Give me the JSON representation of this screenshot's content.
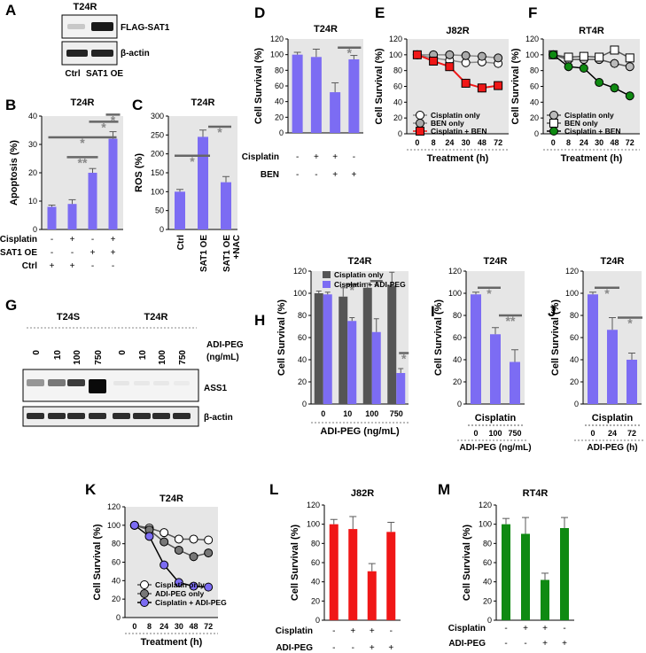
{
  "chart_data": [
    {
      "id": "A",
      "type": "blot",
      "title": "T24R",
      "bands": [
        "FLAG-SAT1",
        "β-actin"
      ],
      "lanes": [
        "Ctrl",
        "SAT1 OE"
      ]
    },
    {
      "id": "B",
      "type": "bar",
      "title": "T24R",
      "ylabel": "Apoptosis (%)",
      "ylim": [
        0,
        40
      ],
      "yticks": [
        0,
        10,
        20,
        30,
        40
      ],
      "values": [
        8,
        9,
        20,
        32
      ],
      "errors": [
        0.6,
        1.5,
        1.5,
        2.5
      ],
      "rows": [
        {
          "label": "Cisplatin",
          "symbols": [
            "-",
            "+",
            "-",
            "+"
          ]
        },
        {
          "label": "SAT1 OE",
          "symbols": [
            "-",
            "-",
            "+",
            "+"
          ]
        },
        {
          "label": "Ctrl",
          "symbols": [
            "+",
            "+",
            "-",
            "-"
          ]
        }
      ],
      "significance": [
        "*",
        "**",
        "*",
        "*"
      ]
    },
    {
      "id": "C",
      "type": "bar",
      "title": "T24R",
      "ylabel": "ROS (%)",
      "ylim": [
        0,
        300
      ],
      "yticks": [
        0,
        50,
        100,
        150,
        200,
        250,
        300
      ],
      "categories": [
        "Ctrl",
        "SAT1 OE",
        "SAT1 OE +NAC"
      ],
      "values": [
        100,
        245,
        125
      ],
      "errors": [
        6,
        18,
        15
      ],
      "significance": [
        "*",
        "*"
      ]
    },
    {
      "id": "D",
      "type": "bar",
      "title": "T24R",
      "ylabel": "Cell Survival (%)",
      "ylim": [
        0,
        120
      ],
      "yticks": [
        0,
        20,
        40,
        60,
        80,
        100,
        120
      ],
      "values": [
        100,
        97,
        52,
        94
      ],
      "errors": [
        3,
        10,
        12,
        5
      ],
      "rows": [
        {
          "label": "Cisplatin",
          "symbols": [
            "-",
            "+",
            "+",
            "-"
          ]
        },
        {
          "label": "BEN",
          "symbols": [
            "-",
            "-",
            "+",
            "+"
          ]
        }
      ],
      "significance": [
        "*"
      ]
    },
    {
      "id": "E",
      "type": "line",
      "title": "J82R",
      "ylabel": "Cell Survival (%)",
      "xlabel": "Treatment (h)",
      "x": [
        0,
        8,
        24,
        30,
        48,
        72
      ],
      "ylim": [
        0,
        120
      ],
      "yticks": [
        0,
        20,
        40,
        60,
        80,
        100,
        120
      ],
      "series": [
        {
          "name": "Cisplatin only",
          "values": [
            100,
            96,
            93,
            90,
            91,
            89
          ]
        },
        {
          "name": "BEN only",
          "values": [
            100,
            100,
            100,
            99,
            98,
            96
          ]
        },
        {
          "name": "Cisplatin + BEN",
          "values": [
            100,
            92,
            85,
            64,
            58,
            61
          ]
        }
      ]
    },
    {
      "id": "F",
      "type": "line",
      "title": "RT4R",
      "ylabel": "Cell Survival (%)",
      "xlabel": "Treatment (h)",
      "x": [
        0,
        8,
        24,
        30,
        48,
        72
      ],
      "ylim": [
        0,
        120
      ],
      "yticks": [
        0,
        20,
        40,
        60,
        80,
        100,
        120
      ],
      "series": [
        {
          "name": "Cisplatin only",
          "values": [
            100,
            94,
            94,
            94,
            89,
            85
          ]
        },
        {
          "name": "BEN only",
          "values": [
            100,
            97,
            98,
            97,
            106,
            96
          ]
        },
        {
          "name": "Cisplatin + BEN",
          "values": [
            100,
            85,
            83,
            65,
            58,
            48
          ]
        }
      ]
    },
    {
      "id": "G",
      "type": "blot",
      "groups": [
        "T24S",
        "T24R"
      ],
      "doses": [
        "0",
        "10",
        "100",
        "750",
        "0",
        "10",
        "100",
        "750"
      ],
      "dose_label": "ADI-PEG (ng/mL)",
      "bands": [
        "ASS1",
        "β-actin"
      ]
    },
    {
      "id": "H",
      "type": "bar",
      "title": "T24R",
      "ylabel": "Cell Survival (%)",
      "xlabel": "ADI-PEG (ng/mL)",
      "categories": [
        "0",
        "10",
        "100",
        "750"
      ],
      "ylim": [
        0,
        120
      ],
      "yticks": [
        0,
        20,
        40,
        60,
        80,
        100,
        120
      ],
      "series": [
        {
          "name": "Cisplatin only",
          "values": [
            100,
            97,
            105,
            107
          ],
          "errors": [
            2,
            8,
            4,
            12
          ]
        },
        {
          "name": "Cisplatin + ADI-PEG",
          "values": [
            99,
            75,
            65,
            28
          ],
          "errors": [
            2,
            3,
            12,
            4
          ]
        }
      ],
      "significance": [
        "*",
        "*",
        "*"
      ]
    },
    {
      "id": "I",
      "type": "bar",
      "title": "T24R",
      "ylabel": "Cell Survival (%)",
      "ylim": [
        0,
        120
      ],
      "yticks": [
        0,
        20,
        40,
        60,
        80,
        100,
        120
      ],
      "group_label": "Cisplatin",
      "categories": [
        "0",
        "100",
        "750"
      ],
      "xlabel": "ADI-PEG (ng/mL)",
      "values": [
        99,
        63,
        38
      ],
      "errors": [
        2,
        6,
        11
      ],
      "significance": [
        "*",
        "**"
      ]
    },
    {
      "id": "J",
      "type": "bar",
      "title": "T24R",
      "ylabel": "Cell Survival (%)",
      "ylim": [
        0,
        120
      ],
      "yticks": [
        0,
        20,
        40,
        60,
        80,
        100,
        120
      ],
      "group_label": "Cisplatin",
      "categories": [
        "0",
        "24",
        "72"
      ],
      "xlabel": "ADI-PEG (h)",
      "values": [
        99,
        67,
        40
      ],
      "errors": [
        2,
        11,
        6
      ],
      "significance": [
        "*",
        "*"
      ]
    },
    {
      "id": "K",
      "type": "line",
      "title": "T24R",
      "ylabel": "Cell Survival (%)",
      "xlabel": "Treatment (h)",
      "x": [
        0,
        8,
        24,
        30,
        48,
        72
      ],
      "ylim": [
        0,
        120
      ],
      "yticks": [
        0,
        20,
        40,
        60,
        80,
        100,
        120
      ],
      "series": [
        {
          "name": "Cisplatin only",
          "values": [
            100,
            97,
            92,
            85,
            85,
            84
          ]
        },
        {
          "name": "ADI-PEG only",
          "values": [
            100,
            95,
            82,
            73,
            66,
            70
          ]
        },
        {
          "name": "Cisplatin + ADI-PEG",
          "values": [
            100,
            88,
            57,
            38,
            34,
            33
          ]
        }
      ]
    },
    {
      "id": "L",
      "type": "bar",
      "title": "J82R",
      "ylabel": "Cell Survival (%)",
      "ylim": [
        0,
        120
      ],
      "yticks": [
        0,
        20,
        40,
        60,
        80,
        100,
        120
      ],
      "values": [
        100,
        95,
        51,
        92
      ],
      "errors": [
        5,
        13,
        8,
        10
      ],
      "rows": [
        {
          "label": "Cisplatin",
          "symbols": [
            "-",
            "+",
            "+",
            "-"
          ]
        },
        {
          "label": "ADI-PEG",
          "symbols": [
            "-",
            "-",
            "+",
            "+"
          ]
        }
      ]
    },
    {
      "id": "M",
      "type": "bar",
      "title": "RT4R",
      "ylabel": "Cell Survival (%)",
      "ylim": [
        0,
        120
      ],
      "yticks": [
        0,
        20,
        40,
        60,
        80,
        100,
        120
      ],
      "values": [
        100,
        90,
        42,
        96
      ],
      "errors": [
        6,
        17,
        7,
        11
      ],
      "rows": [
        {
          "label": "Cisplatin",
          "symbols": [
            "-",
            "+",
            "+",
            "-"
          ]
        },
        {
          "label": "ADI-PEG",
          "symbols": [
            "-",
            "-",
            "+",
            "+"
          ]
        }
      ]
    }
  ],
  "colors": {
    "purple": "#7c6cf3",
    "red": "#f01717",
    "green": "#0f8a12",
    "gray": "#5a5a5a",
    "plotbg": "#e6e6e6"
  }
}
